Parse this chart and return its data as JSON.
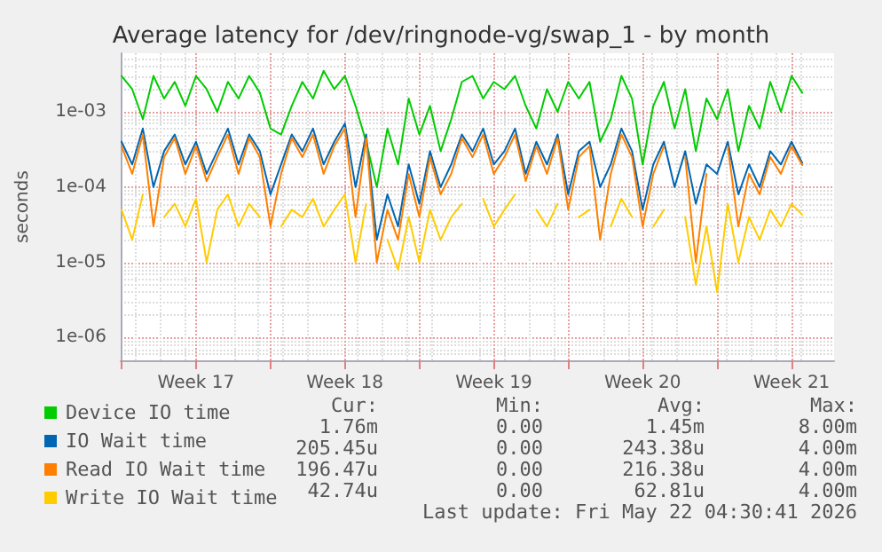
{
  "chart_data": {
    "type": "line",
    "title": "Average latency for /dev/ringnode-vg/swap_1 - by month",
    "ylabel": "seconds",
    "x": [
      "2026-04-20T00:00",
      "2026-04-20T12:00",
      "2026-04-21T00:00",
      "2026-04-21T12:00",
      "2026-04-22T00:00",
      "2026-04-22T12:00",
      "2026-04-23T00:00",
      "2026-04-23T12:00",
      "2026-04-24T00:00",
      "2026-04-24T12:00",
      "2026-04-25T00:00",
      "2026-04-25T12:00",
      "2026-04-26T00:00",
      "2026-04-26T12:00",
      "2026-04-27T00:00",
      "2026-04-27T12:00",
      "2026-04-28T00:00",
      "2026-04-28T12:00",
      "2026-04-29T00:00",
      "2026-04-29T12:00",
      "2026-04-30T00:00",
      "2026-04-30T12:00",
      "2026-05-01T00:00",
      "2026-05-01T12:00",
      "2026-05-02T00:00",
      "2026-05-02T12:00",
      "2026-05-03T00:00",
      "2026-05-03T12:00",
      "2026-05-04T00:00",
      "2026-05-04T12:00",
      "2026-05-05T00:00",
      "2026-05-05T12:00",
      "2026-05-06T00:00",
      "2026-05-06T12:00",
      "2026-05-07T00:00",
      "2026-05-07T12:00",
      "2026-05-08T00:00",
      "2026-05-08T12:00",
      "2026-05-09T00:00",
      "2026-05-09T12:00",
      "2026-05-10T00:00",
      "2026-05-10T12:00",
      "2026-05-11T00:00",
      "2026-05-11T12:00",
      "2026-05-12T00:00",
      "2026-05-12T12:00",
      "2026-05-13T00:00",
      "2026-05-13T12:00",
      "2026-05-14T00:00",
      "2026-05-14T12:00",
      "2026-05-15T00:00",
      "2026-05-15T12:00",
      "2026-05-16T00:00",
      "2026-05-16T12:00",
      "2026-05-17T00:00",
      "2026-05-17T12:00",
      "2026-05-18T00:00",
      "2026-05-18T12:00",
      "2026-05-19T00:00",
      "2026-05-19T12:00",
      "2026-05-20T00:00",
      "2026-05-20T12:00",
      "2026-05-21T00:00",
      "2026-05-21T12:00",
      "2026-05-22T00:00"
    ],
    "series": [
      {
        "name": "Device IO time",
        "color": "#00cc00",
        "values": [
          0.003,
          0.002,
          0.0008,
          0.003,
          0.0015,
          0.0025,
          0.0012,
          0.003,
          0.002,
          0.001,
          0.0025,
          0.0015,
          0.003,
          0.0018,
          0.0006,
          0.0005,
          0.0012,
          0.0025,
          0.0015,
          0.0035,
          0.002,
          0.003,
          0.0012,
          0.0004,
          0.0001,
          0.0006,
          0.0002,
          0.0015,
          0.0005,
          0.0012,
          0.0003,
          0.0008,
          0.0025,
          0.003,
          0.0015,
          0.0025,
          0.002,
          0.003,
          0.0012,
          0.0006,
          0.002,
          0.001,
          0.0025,
          0.0015,
          0.0025,
          0.0004,
          0.0008,
          0.003,
          0.0015,
          0.0002,
          0.0012,
          0.0025,
          0.0006,
          0.002,
          0.0003,
          0.0015,
          0.0008,
          0.002,
          0.0003,
          0.0012,
          0.0006,
          0.0025,
          0.001,
          0.003,
          0.0018
        ]
      },
      {
        "name": "IO Wait time",
        "color": "#0066b3",
        "values": [
          0.0004,
          0.0002,
          0.0006,
          0.0001,
          0.0003,
          0.0005,
          0.0002,
          0.0004,
          0.00015,
          0.0003,
          0.0006,
          0.0002,
          0.0005,
          0.0003,
          8e-05,
          0.0002,
          0.0005,
          0.0003,
          0.0006,
          0.0002,
          0.0004,
          0.0007,
          0.0001,
          0.0005,
          2e-05,
          8e-05,
          3e-05,
          0.0002,
          6e-05,
          0.0003,
          0.0001,
          0.0002,
          0.0005,
          0.0003,
          0.0006,
          0.0002,
          0.0003,
          0.0006,
          0.00015,
          0.0004,
          0.0002,
          0.0005,
          8e-05,
          0.0003,
          0.0004,
          0.0001,
          0.0002,
          0.0006,
          0.0003,
          5e-05,
          0.0002,
          0.0004,
          0.0001,
          0.0003,
          6e-05,
          0.0002,
          0.00015,
          0.0004,
          8e-05,
          0.0002,
          0.0001,
          0.0003,
          0.0002,
          0.0004,
          0.00021
        ]
      },
      {
        "name": "Read IO Wait time",
        "color": "#ff8000",
        "values": [
          0.00035,
          0.00015,
          0.0005,
          3e-05,
          0.00025,
          0.00045,
          0.00015,
          0.00035,
          0.00012,
          0.00025,
          0.0005,
          0.00015,
          0.00045,
          0.00025,
          3e-05,
          0.00015,
          0.00045,
          0.00025,
          0.0005,
          0.00015,
          0.00035,
          0.0006,
          4e-05,
          0.00045,
          1e-05,
          5e-05,
          2e-05,
          0.00015,
          4e-05,
          0.00025,
          8e-05,
          0.00015,
          0.00045,
          0.00025,
          0.0005,
          0.00015,
          0.00025,
          0.0005,
          0.00012,
          0.00035,
          0.00015,
          0.00045,
          5e-05,
          0.00025,
          0.00035,
          2e-05,
          0.00015,
          0.0005,
          0.00025,
          3e-05,
          0.00015,
          0.00035,
          null,
          0.00025,
          1e-05,
          0.00015,
          null,
          0.00035,
          3e-05,
          0.00015,
          8e-05,
          0.00025,
          0.00015,
          0.00035,
          0.000196
        ]
      },
      {
        "name": "Write IO Wait time",
        "color": "#ffcc00",
        "values": [
          5e-05,
          2e-05,
          8e-05,
          null,
          4e-05,
          6e-05,
          3e-05,
          7e-05,
          1e-05,
          5e-05,
          8e-05,
          3e-05,
          6e-05,
          4e-05,
          null,
          3e-05,
          5e-05,
          4e-05,
          7e-05,
          3e-05,
          5e-05,
          8e-05,
          1e-05,
          6e-05,
          null,
          2e-05,
          8e-06,
          4e-05,
          1e-05,
          5e-05,
          2e-05,
          4e-05,
          6e-05,
          null,
          7e-05,
          3e-05,
          5e-05,
          8e-05,
          null,
          5e-05,
          3e-05,
          6e-05,
          null,
          4e-05,
          5e-05,
          null,
          3e-05,
          7e-05,
          4e-05,
          null,
          3e-05,
          5e-05,
          null,
          4e-05,
          5e-06,
          3e-05,
          4e-06,
          6e-05,
          1e-05,
          4e-05,
          2e-05,
          5e-05,
          3e-05,
          6e-05,
          4.3e-05
        ]
      }
    ],
    "log": "y",
    "ylim": [
      5e-07,
      0.006
    ],
    "yticks": [
      {
        "value": 1e-06,
        "label": "1e-06"
      },
      {
        "value": 1e-05,
        "label": "1e-05"
      },
      {
        "value": 0.0001,
        "label": "1e-04"
      },
      {
        "value": 0.001,
        "label": "1e-03"
      }
    ],
    "xlim": [
      "2026-04-19T23:00",
      "2026-05-23T12:00"
    ],
    "xticks": [
      {
        "value": "2026-04-20T00:00",
        "label": null
      },
      {
        "value": "2026-04-23T12:00",
        "label": "Week 17"
      },
      {
        "value": "2026-04-27T00:00",
        "label": null
      },
      {
        "value": "2026-04-30T12:00",
        "label": "Week 18"
      },
      {
        "value": "2026-05-04T00:00",
        "label": null
      },
      {
        "value": "2026-05-07T12:00",
        "label": "Week 19"
      },
      {
        "value": "2026-05-11T00:00",
        "label": null
      },
      {
        "value": "2026-05-14T12:00",
        "label": "Week 20"
      },
      {
        "value": "2026-05-18T00:00",
        "label": null
      },
      {
        "value": "2026-05-21T12:00",
        "label": "Week 21"
      }
    ],
    "grid": true,
    "legend": "bottom left",
    "marker": "none",
    "line_style": "solid",
    "annotations": [
      "Cur:",
      "Min:",
      "Avg:",
      "Max:",
      "1.76m",
      "0.00",
      "1.45m",
      "8.00m",
      "205.45u",
      "0.00",
      "243.38u",
      "4.00m",
      "196.47u",
      "0.00",
      "216.38u",
      "4.00m",
      "42.74u",
      "0.00",
      "62.81u",
      "4.00m",
      "Last update: Fri May 22 04:30:41 2026"
    ]
  }
}
